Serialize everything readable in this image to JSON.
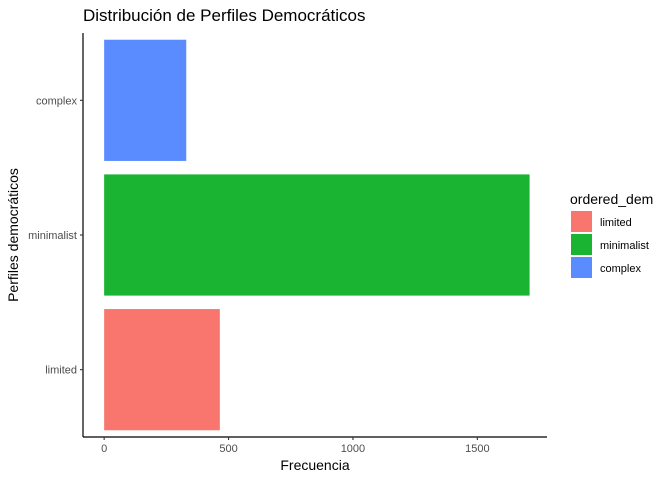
{
  "chart_data": {
    "type": "bar",
    "orientation": "horizontal",
    "title": "Distribución de Perfiles Democráticos",
    "xlabel": "Frecuencia",
    "ylabel": "Perfiles democráticos",
    "categories": [
      "limited",
      "minimalist",
      "complex"
    ],
    "values": [
      465,
      1710,
      330
    ],
    "colors": [
      "#F8766D",
      "#1AB432",
      "#5A8CFF"
    ],
    "xlim": [
      -85,
      1780
    ],
    "xticks": [
      0,
      500,
      1000,
      1500
    ],
    "xtick_labels": [
      "0",
      "500",
      "1000",
      "1500"
    ],
    "grid": false,
    "legend": {
      "title": "ordered_dem",
      "position": "right",
      "entries": [
        {
          "label": "limited",
          "color": "#F8766D"
        },
        {
          "label": "minimalist",
          "color": "#1AB432"
        },
        {
          "label": "complex",
          "color": "#5A8CFF"
        }
      ]
    }
  }
}
